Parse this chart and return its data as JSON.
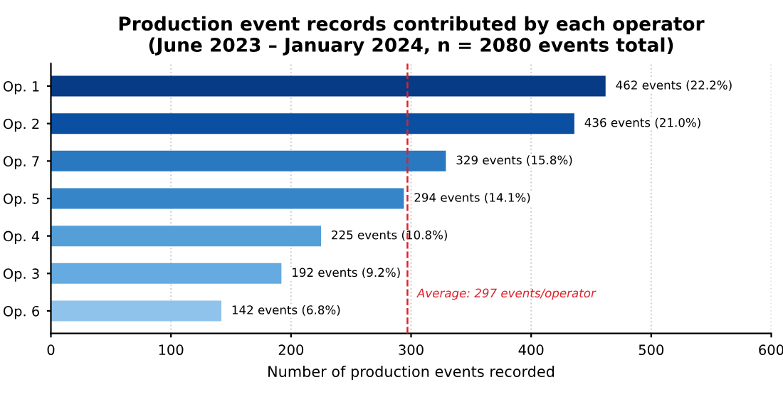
{
  "chart_data": {
    "type": "bar",
    "orientation": "horizontal",
    "title": "Production event records contributed by each operator\n(June 2023 – January 2024, n = 2080 events total)",
    "xlabel": "Number of production events recorded",
    "categories": [
      "Op. 1",
      "Op. 2",
      "Op. 7",
      "Op. 5",
      "Op. 4",
      "Op. 3",
      "Op. 6"
    ],
    "values": [
      462,
      436,
      329,
      294,
      225,
      192,
      142
    ],
    "colors": [
      "#083b85",
      "#0b4fa3",
      "#2a78c0",
      "#3585c8",
      "#559fd8",
      "#65aae0",
      "#8fc3ec"
    ],
    "value_labels": [
      "462 events (22.2%)",
      "436 events (21.0%)",
      "329 events (15.8%)",
      "294 events (14.1%)",
      "225 events (10.8%)",
      "192 events (9.2%)",
      "142 events (6.8%)"
    ],
    "xlim": [
      0,
      600
    ],
    "xticks": [
      0,
      100,
      200,
      300,
      400,
      500,
      600
    ],
    "grid": "x",
    "ref_lines": [
      {
        "axis": "x",
        "value": 297,
        "label": "Average: 297 events/operator",
        "color": "#e0202a",
        "line_style": "dashed"
      }
    ]
  }
}
